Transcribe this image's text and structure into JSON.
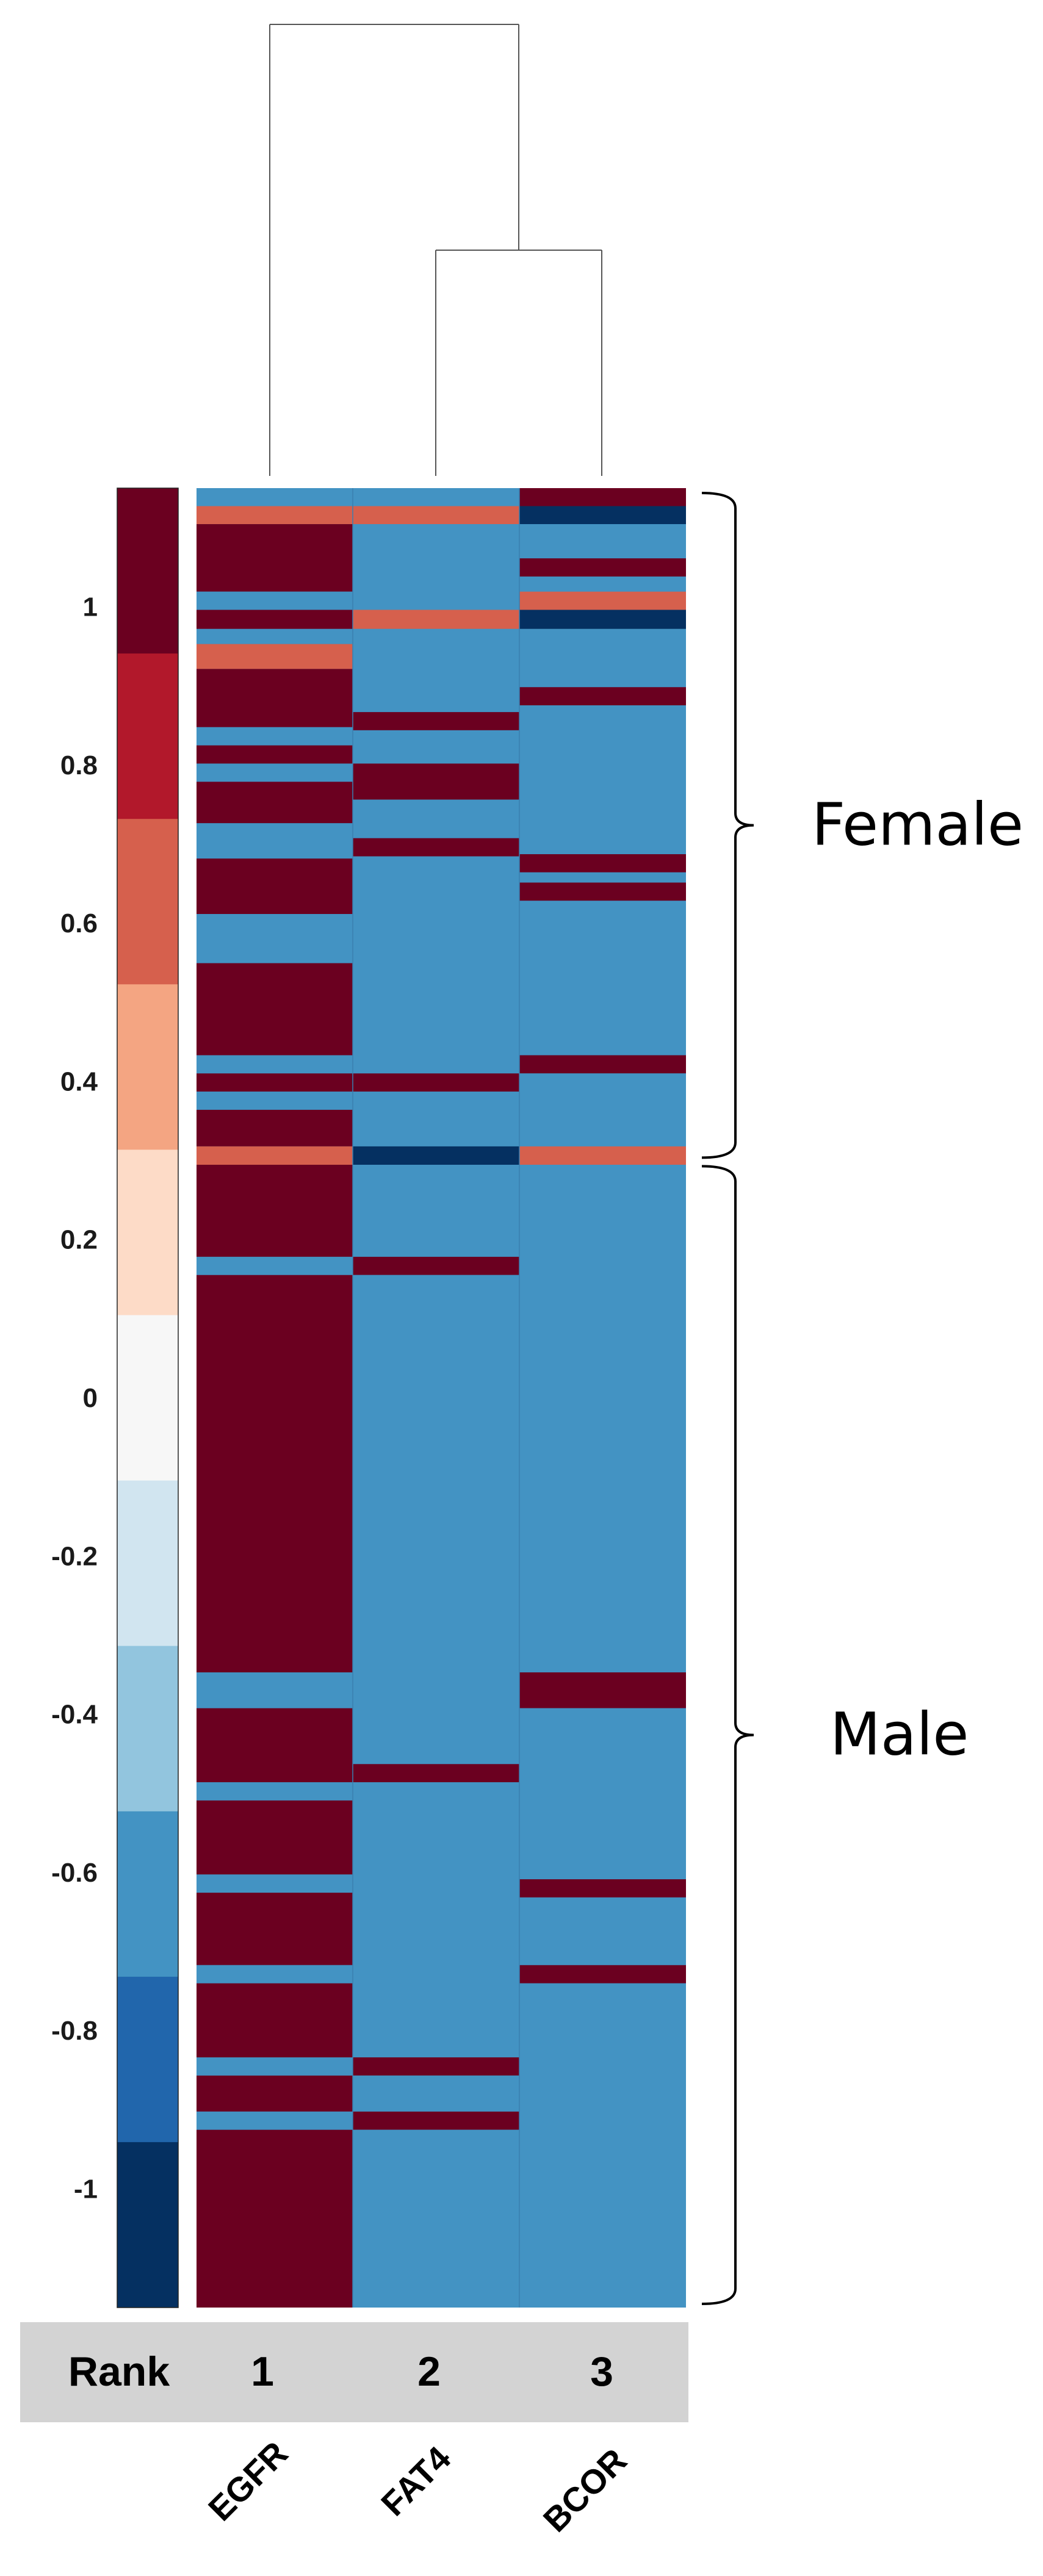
{
  "chart_data": {
    "type": "heatmap",
    "columns": [
      "EGFR",
      "FAT4",
      "BCOR"
    ],
    "rank_header": "Rank",
    "ranks": [
      "1",
      "2",
      "3"
    ],
    "groups": [
      {
        "name": "Female",
        "row_start": 0,
        "row_end": 36
      },
      {
        "name": "Male",
        "row_start": 37,
        "row_end": 99
      }
    ],
    "colorbar": {
      "min": -1.15,
      "max": 1.15,
      "ticks": [
        1,
        0.8,
        0.6,
        0.4,
        0.2,
        0,
        -0.2,
        -0.4,
        -0.6,
        -0.8,
        -1
      ],
      "tick_labels": [
        "1",
        "0.8",
        "0.6",
        "0.4",
        "0.2",
        "0",
        "-0.2",
        "-0.4",
        "-0.6",
        "-0.8",
        "-1"
      ],
      "colors": [
        "#6b0020",
        "#b2182b",
        "#d6604d",
        "#f4a582",
        "#fddbc7",
        "#f7f7f7",
        "#d1e5f0",
        "#92c5de",
        "#4393c3",
        "#2166ac",
        "#053061"
      ]
    },
    "dendrogram": {
      "merges": [
        {
          "left": "FAT4",
          "right": "BCOR",
          "height": 0.5
        },
        {
          "left": "EGFR",
          "right": "FAT4+BCOR",
          "height": 1.0
        }
      ]
    },
    "value_colors": {
      "1": "#6b0020",
      "0.5": "#d6604d",
      "-0.5": "#4393c3",
      "-1": "#053061"
    },
    "segments": {
      "EGFR": [
        [
          0,
          0.99,
          -0.5
        ],
        [
          0.99,
          1.98,
          0.5
        ],
        [
          1.98,
          5.69,
          1
        ],
        [
          5.69,
          6.69,
          -0.5
        ],
        [
          6.69,
          7.74,
          1
        ],
        [
          7.74,
          8.57,
          -0.5
        ],
        [
          8.57,
          9.94,
          0.5
        ],
        [
          9.94,
          13.14,
          1
        ],
        [
          13.14,
          14.14,
          -0.5
        ],
        [
          14.14,
          15.14,
          1
        ],
        [
          15.14,
          16.14,
          -0.5
        ],
        [
          16.14,
          18.42,
          1
        ],
        [
          18.42,
          20.36,
          -0.5
        ],
        [
          20.36,
          23.41,
          1
        ],
        [
          23.41,
          26.11,
          -0.5
        ],
        [
          26.11,
          31.17,
          1
        ],
        [
          31.17,
          32.17,
          -0.5
        ],
        [
          32.17,
          33.17,
          1
        ],
        [
          33.17,
          34.17,
          -0.5
        ],
        [
          34.17,
          36.18,
          1
        ],
        [
          36.18,
          37.19,
          0.5
        ],
        [
          37.19,
          42.25,
          1
        ],
        [
          42.25,
          43.25,
          -0.5
        ],
        [
          43.25,
          65.09,
          1
        ],
        [
          65.09,
          67.06,
          -0.5
        ],
        [
          67.06,
          71.13,
          1
        ],
        [
          71.13,
          72.13,
          -0.5
        ],
        [
          72.13,
          76.2,
          1
        ],
        [
          76.2,
          77.2,
          -0.5
        ],
        [
          77.2,
          81.18,
          1
        ],
        [
          81.18,
          82.18,
          -0.5
        ],
        [
          82.18,
          86.25,
          1
        ],
        [
          86.25,
          87.25,
          -0.5
        ],
        [
          87.25,
          89.23,
          1
        ],
        [
          89.23,
          90.23,
          -0.5
        ],
        [
          90.23,
          100,
          1
        ]
      ],
      "FAT4": [
        [
          0,
          0.99,
          -0.5
        ],
        [
          0.99,
          1.98,
          0.5
        ],
        [
          1.98,
          6.69,
          -0.5
        ],
        [
          6.69,
          7.74,
          0.5
        ],
        [
          7.74,
          12.31,
          -0.5
        ],
        [
          12.31,
          13.31,
          1
        ],
        [
          13.31,
          15.14,
          -0.5
        ],
        [
          15.14,
          17.12,
          1
        ],
        [
          17.12,
          19.24,
          -0.5
        ],
        [
          19.24,
          20.24,
          1
        ],
        [
          20.24,
          32.17,
          -0.5
        ],
        [
          32.17,
          33.17,
          1
        ],
        [
          33.17,
          36.18,
          -0.5
        ],
        [
          36.18,
          37.19,
          -1
        ],
        [
          37.19,
          42.25,
          -0.5
        ],
        [
          42.25,
          43.25,
          1
        ],
        [
          43.25,
          70.13,
          -0.5
        ],
        [
          70.13,
          71.13,
          1
        ],
        [
          71.13,
          86.25,
          -0.5
        ],
        [
          86.25,
          87.25,
          1
        ],
        [
          87.25,
          89.23,
          -0.5
        ],
        [
          89.23,
          90.23,
          1
        ],
        [
          90.23,
          100,
          -0.5
        ]
      ],
      "BCOR": [
        [
          0,
          0.99,
          1
        ],
        [
          0.99,
          1.98,
          -1
        ],
        [
          1.98,
          3.86,
          -0.5
        ],
        [
          3.86,
          4.86,
          1
        ],
        [
          4.86,
          5.69,
          -0.5
        ],
        [
          5.69,
          6.69,
          0.5
        ],
        [
          6.69,
          7.74,
          -1
        ],
        [
          7.74,
          10.94,
          -0.5
        ],
        [
          10.94,
          11.94,
          1
        ],
        [
          11.94,
          20.12,
          -0.5
        ],
        [
          20.12,
          21.12,
          1
        ],
        [
          21.12,
          21.68,
          -0.5
        ],
        [
          21.68,
          22.68,
          1
        ],
        [
          22.68,
          31.17,
          -0.5
        ],
        [
          31.17,
          32.17,
          1
        ],
        [
          32.17,
          36.18,
          -0.5
        ],
        [
          36.18,
          37.19,
          0.5
        ],
        [
          37.19,
          65.09,
          -0.5
        ],
        [
          65.09,
          67.06,
          1
        ],
        [
          67.06,
          76.46,
          -0.5
        ],
        [
          76.46,
          77.46,
          1
        ],
        [
          77.46,
          81.18,
          -0.5
        ],
        [
          81.18,
          82.18,
          1
        ],
        [
          82.18,
          100,
          -0.5
        ]
      ]
    }
  }
}
